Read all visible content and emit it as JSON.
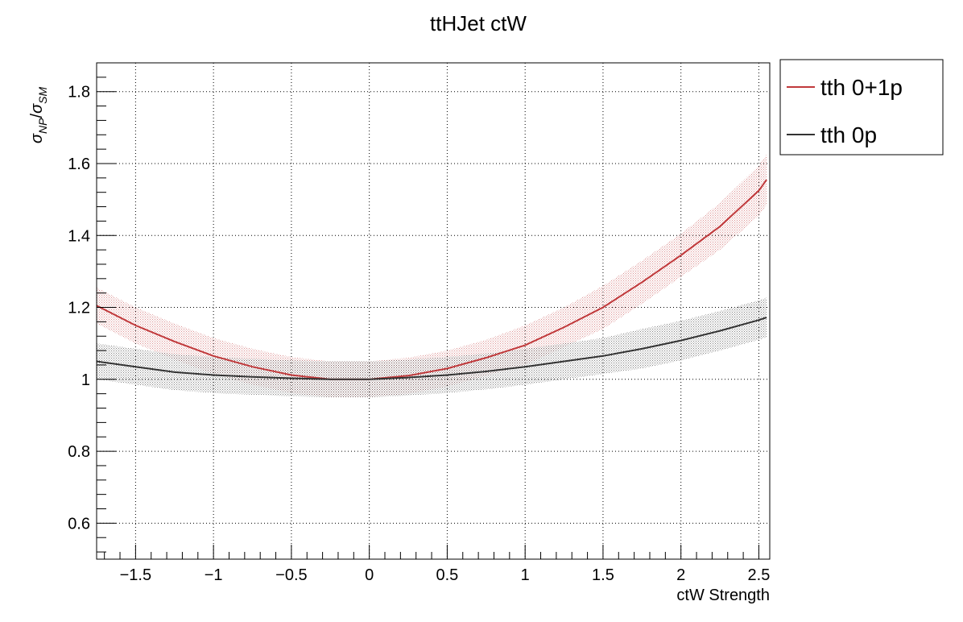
{
  "chart_data": {
    "type": "line",
    "title": "ttHJet ctW",
    "xlabel": "ctW Strength",
    "ylabel": {
      "sym": "σ",
      "num_sub": "NP",
      "den_sub": "SM"
    },
    "xlim": [
      -1.75,
      2.57
    ],
    "ylim": [
      0.5,
      1.88
    ],
    "grid": true,
    "legend_placement": "top-right-outside",
    "x_ticks": [
      -1.5,
      -1,
      -0.5,
      0,
      0.5,
      1,
      1.5,
      2,
      2.5
    ],
    "x_tick_labels": [
      "−1.5",
      "−1",
      "−0.5",
      "0",
      "0.5",
      "1",
      "1.5",
      "2",
      "2.5"
    ],
    "y_ticks": [
      0.6,
      0.8,
      1,
      1.2,
      1.4,
      1.6,
      1.8
    ],
    "y_tick_labels": [
      "0.6",
      "0.8",
      "1",
      "1.2",
      "1.4",
      "1.6",
      "1.8"
    ],
    "series": [
      {
        "name": "tth 0+1p",
        "color": "#c0393b",
        "x": [
          -1.75,
          -1.5,
          -1.25,
          -1.0,
          -0.75,
          -0.5,
          -0.25,
          0.0,
          0.25,
          0.5,
          0.75,
          1.0,
          1.25,
          1.5,
          1.75,
          2.0,
          2.25,
          2.5,
          2.55
        ],
        "y": [
          1.205,
          1.15,
          1.105,
          1.065,
          1.035,
          1.012,
          1.0,
          1.0,
          1.01,
          1.03,
          1.06,
          1.095,
          1.145,
          1.2,
          1.27,
          1.345,
          1.425,
          1.525,
          1.555
        ],
        "band_halfwidth": [
          0.05,
          0.05,
          0.05,
          0.05,
          0.05,
          0.05,
          0.05,
          0.05,
          0.05,
          0.05,
          0.05,
          0.055,
          0.055,
          0.06,
          0.06,
          0.06,
          0.065,
          0.07,
          0.07
        ]
      },
      {
        "name": "tth 0p",
        "color": "#333333",
        "x": [
          -1.75,
          -1.5,
          -1.25,
          -1.0,
          -0.75,
          -0.5,
          -0.25,
          0.0,
          0.25,
          0.5,
          0.75,
          1.0,
          1.25,
          1.5,
          1.75,
          2.0,
          2.25,
          2.5,
          2.55
        ],
        "y": [
          1.05,
          1.035,
          1.02,
          1.012,
          1.007,
          1.003,
          1.0,
          1.0,
          1.005,
          1.012,
          1.022,
          1.035,
          1.05,
          1.065,
          1.085,
          1.108,
          1.135,
          1.165,
          1.172
        ],
        "band_halfwidth": [
          0.05,
          0.05,
          0.05,
          0.05,
          0.05,
          0.05,
          0.05,
          0.05,
          0.05,
          0.05,
          0.05,
          0.05,
          0.05,
          0.05,
          0.055,
          0.055,
          0.055,
          0.055,
          0.055
        ]
      }
    ]
  }
}
